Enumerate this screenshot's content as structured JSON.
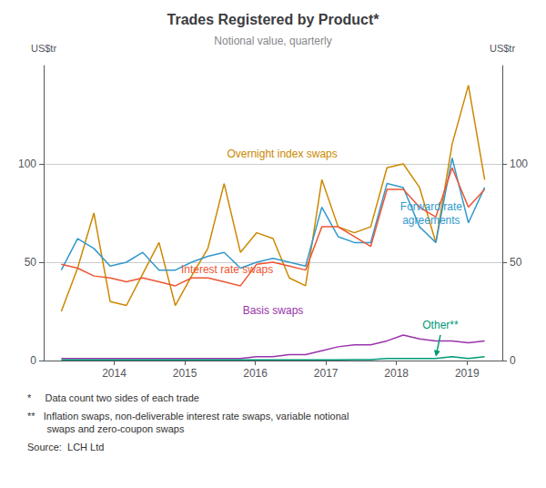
{
  "chart_data": {
    "type": "line",
    "title": "Trades Registered by Product*",
    "subtitle": "Notional value, quarterly",
    "ylabel": "US$tr",
    "y2label": "US$tr",
    "x": [
      2013.25,
      2013.480769230769,
      2013.711538461538,
      2013.942307692308,
      2014.173076923077,
      2014.403846153846,
      2014.634615384615,
      2014.865384615385,
      2015.096153846154,
      2015.326923076923,
      2015.557692307692,
      2015.788461538462,
      2016.019230769231,
      2016.25,
      2016.480769230769,
      2016.711538461538,
      2016.942307692308,
      2017.173076923077,
      2017.403846153846,
      2017.634615384615,
      2017.865384615385,
      2018.096153846154,
      2018.326923076923,
      2018.557692307692,
      2018.788461538462,
      2019.019230769231,
      2019.25
    ],
    "series": [
      {
        "name": "Overnight index swaps",
        "color": "#CC8800",
        "values": [
          25,
          47,
          75,
          30,
          28,
          44,
          60,
          28,
          43,
          57,
          90,
          55,
          65,
          62,
          42,
          38,
          92,
          68,
          65,
          68,
          98,
          100,
          88,
          60,
          110,
          140,
          92
        ]
      },
      {
        "name": "Forward rate agreements",
        "color": "#3399CC",
        "values": [
          46,
          62,
          57,
          48,
          50,
          55,
          46,
          46,
          50,
          53,
          55,
          47,
          50,
          52,
          50,
          48,
          78,
          63,
          60,
          60,
          90,
          88,
          68,
          60,
          103,
          70,
          88
        ]
      },
      {
        "name": "Interest rate swaps",
        "color": "#EE5533",
        "values": [
          49,
          47,
          43,
          42,
          40,
          42,
          40,
          38,
          42,
          42,
          40,
          38,
          49,
          50,
          48,
          46,
          68,
          68,
          63,
          58,
          87,
          87,
          78,
          73,
          98,
          78,
          87
        ]
      },
      {
        "name": "Basis swaps",
        "color": "#9933AA",
        "values": [
          1,
          1,
          1,
          1,
          1,
          1,
          1,
          1,
          1,
          1,
          1,
          1,
          2,
          2,
          3,
          3,
          5,
          7,
          8,
          8,
          10,
          13,
          11,
          10,
          10,
          9,
          10
        ]
      },
      {
        "name": "Other**",
        "color": "#009977",
        "values": [
          0.3,
          0.3,
          0.3,
          0.3,
          0.3,
          0.3,
          0.3,
          0.3,
          0.3,
          0.3,
          0.3,
          0.3,
          0.3,
          0.3,
          0.3,
          0.3,
          0.3,
          0.3,
          0.5,
          0.5,
          1,
          1,
          1,
          1,
          2,
          1,
          2
        ]
      }
    ],
    "xlim": [
      2013,
      2019.5
    ],
    "xticks": [
      2014,
      2015,
      2016,
      2017,
      2018,
      2019
    ],
    "ylim": [
      0,
      150
    ],
    "yticks": [
      0,
      50,
      100
    ],
    "y2lim": [
      0,
      150
    ],
    "y2ticks": [
      0,
      50,
      100
    ],
    "grid": true,
    "annotations": [
      "Overnight index swaps",
      "Forward rate\nagreements",
      "Interest rate swaps",
      "Basis swaps",
      "Other**"
    ],
    "footnotes": [
      "*     Data count two sides of each trade",
      "**   Inflation swaps, non-deliverable interest rate swaps, variable notional\n       swaps and zero-coupon swaps",
      "Source:  LCH Ltd"
    ]
  }
}
